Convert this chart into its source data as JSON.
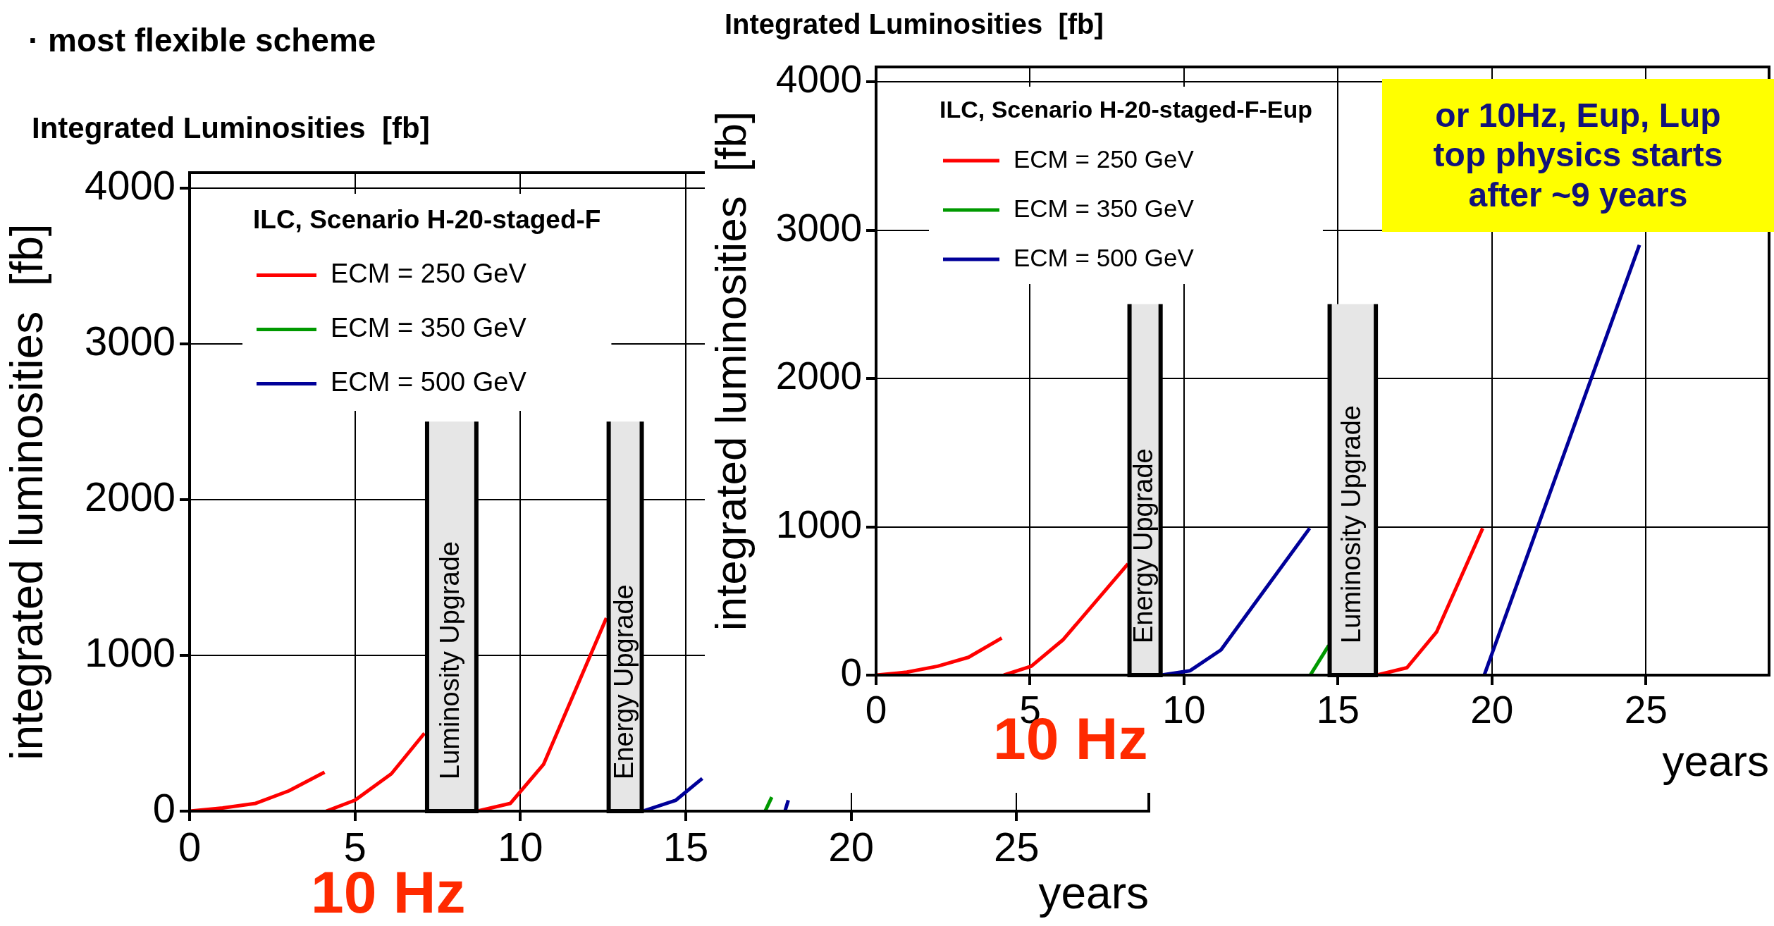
{
  "chart_data": [
    {
      "type": "line",
      "title": "Integrated Luminosities  [fb]",
      "xlabel": "years",
      "ylabel": "integrated luminosities  [fb]",
      "legend_title": "ILC, Scenario H-20-staged-F",
      "legend": "top left",
      "grid": true,
      "xlim": [
        0,
        29
      ],
      "xticks": [
        0,
        5,
        10,
        15,
        20,
        25
      ],
      "ylim": [
        0,
        4100
      ],
      "yticks": [
        0,
        1000,
        2000,
        3000,
        4000
      ],
      "series": [
        {
          "name": "ECM = 250 GeV",
          "color": "#ff0000",
          "x": [
            0,
            1,
            2,
            3,
            4.08,
            4.1,
            4.13,
            5,
            6.1,
            7.1,
            7.9,
            8.7,
            9.7,
            10.7,
            12.6
          ],
          "values": [
            0,
            20,
            50,
            130,
            250,
            null,
            0,
            70,
            240,
            500,
            null,
            0,
            50,
            300,
            1240
          ]
        },
        {
          "name": "ECM = 350 GeV",
          "color": "#009900",
          "x": [
            17.4,
            17.6
          ],
          "values": [
            0,
            90
          ]
        },
        {
          "name": "ECM = 500 GeV",
          "color": "#000099",
          "x": [
            13.7,
            14.7,
            15.5,
            16.8,
            18.0,
            18.1
          ],
          "values": [
            0,
            70,
            210,
            null,
            0,
            70
          ]
        }
      ],
      "bands": [
        {
          "axis": "x",
          "from": 7.18,
          "to": 8.67,
          "label": "Luminosity Upgrade"
        },
        {
          "axis": "x",
          "from": 12.67,
          "to": 13.67,
          "label": "Energy Upgrade"
        }
      ],
      "annotations": [
        "· most flexible scheme",
        "10 Hz"
      ]
    },
    {
      "type": "line",
      "title": "Integrated Luminosities  [fb]",
      "xlabel": "years",
      "ylabel": "integrated luminosities  [fb]",
      "legend_title": "ILC, Scenario H-20-staged-F-Eup",
      "legend": "top left",
      "grid": true,
      "xlim": [
        0,
        29
      ],
      "xticks": [
        0,
        5,
        10,
        15,
        20,
        25
      ],
      "ylim": [
        0,
        4100
      ],
      "yticks": [
        0,
        1000,
        2000,
        3000,
        4000
      ],
      "series": [
        {
          "name": "ECM = 250 GeV",
          "color": "#ff0000",
          "x": [
            0,
            1,
            2,
            3,
            4.08,
            4.1,
            4.15,
            5.04,
            6.08,
            8.18,
            12,
            16.26,
            17.24,
            18.2,
            19.7
          ],
          "values": [
            0,
            20,
            60,
            120,
            250,
            null,
            0,
            60,
            240,
            750,
            null,
            0,
            50,
            290,
            990
          ]
        },
        {
          "name": "ECM = 350 GeV",
          "color": "#009900",
          "x": [
            14.1,
            14.7
          ],
          "values": [
            0,
            200
          ]
        },
        {
          "name": "ECM = 500 GeV",
          "color": "#000099",
          "x": [
            9.26,
            10.2,
            11.2,
            14.08,
            17,
            19.75,
            24.79
          ],
          "values": [
            0,
            30,
            170,
            990,
            null,
            0,
            2900
          ]
        }
      ],
      "bands": [
        {
          "axis": "x",
          "from": 8.23,
          "to": 9.24,
          "label": "Energy Upgrade"
        },
        {
          "axis": "x",
          "from": 14.73,
          "to": 16.23,
          "label": "Luminosity Upgrade"
        }
      ],
      "annotations": [
        "10 Hz",
        "or 10Hz, Eup, Lup\ntop physics starts\nafter ~9 years"
      ]
    }
  ]
}
